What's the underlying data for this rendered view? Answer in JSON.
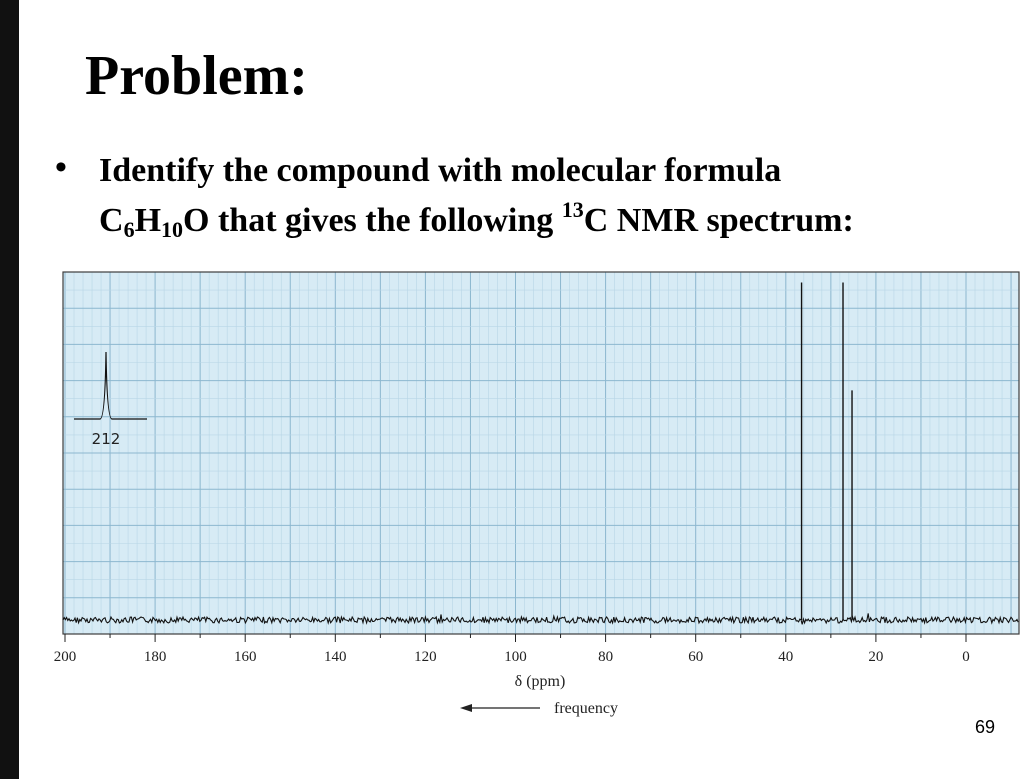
{
  "slide": {
    "title": "Problem:",
    "bullet": {
      "part1": "Identify the compound with molecular formula",
      "formula": [
        {
          "t": "C",
          "s": ""
        },
        {
          "t": "6",
          "s": "sub"
        },
        {
          "t": "H",
          "s": ""
        },
        {
          "t": "10",
          "s": "sub"
        },
        {
          "t": "O",
          "s": ""
        }
      ],
      "part2": " that gives the following ",
      "isotope": "13",
      "part3": "C NMR spectrum:"
    },
    "page_number": "69"
  },
  "chart_data": {
    "type": "line",
    "title": "",
    "xlabel": "δ (ppm)",
    "arrow_label": "frequency",
    "xlim": [
      200,
      -12
    ],
    "x_reversed": true,
    "ticks": [
      200,
      180,
      160,
      140,
      120,
      100,
      80,
      60,
      40,
      20,
      0
    ],
    "peaks": [
      {
        "ppm": 36.5,
        "height": 0.97
      },
      {
        "ppm": 27.3,
        "height": 0.97
      },
      {
        "ppm": 25.3,
        "height": 0.66
      }
    ],
    "inset_peak": {
      "ppm_label": "212"
    },
    "colors": {
      "background": "#d7ebf5",
      "grid_major": "#8cb7cf",
      "grid_minor": "#b8d6e6",
      "trace": "#111111"
    }
  }
}
